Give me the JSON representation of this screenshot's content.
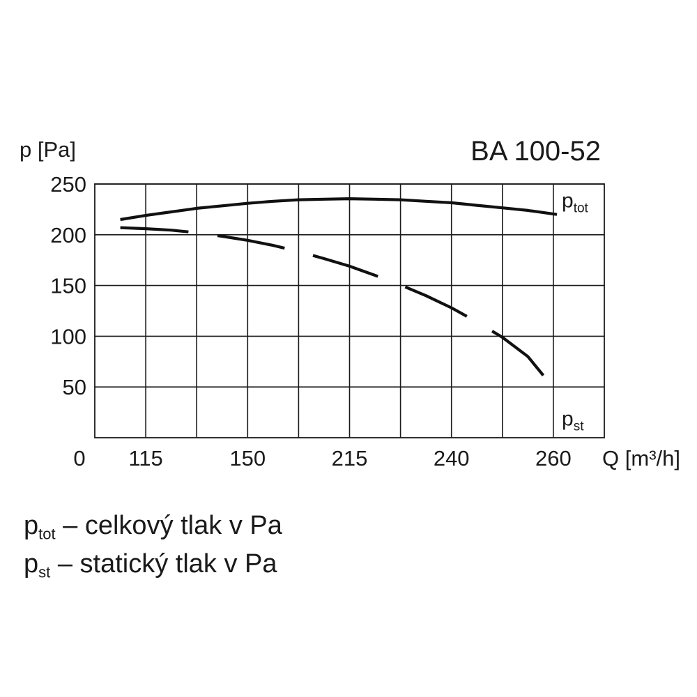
{
  "chart_data": {
    "type": "line",
    "title": "BA 100-52",
    "ylabel": "p [Pa]",
    "xlabel": "Q [m³/h]",
    "x_ticks": [
      "0",
      "115",
      "150",
      "215",
      "240",
      "260"
    ],
    "y_ticks": [
      250,
      200,
      150,
      100,
      50
    ],
    "ylim": [
      0,
      250
    ],
    "grid": true,
    "series": [
      {
        "name_base": "p",
        "name_sub": "tot",
        "style": "solid",
        "x": [
          0.5,
          1,
          1.5,
          2,
          2.5,
          3,
          3.5,
          4,
          4.5,
          5,
          5.5,
          6,
          6.5,
          7,
          7.5,
          8,
          8.5,
          9.07
        ],
        "y": [
          215,
          219,
          222.5,
          226,
          228.5,
          231,
          233,
          234.5,
          235,
          235.5,
          235,
          234.5,
          233,
          231.5,
          229,
          226.5,
          224,
          220
        ]
      },
      {
        "name_base": "p",
        "name_sub": "st",
        "style": "dashed",
        "x": [
          0.5,
          1,
          1.5,
          2,
          2.5,
          3,
          3.5,
          4,
          4.5,
          5,
          5.5,
          6,
          6.5,
          7,
          7.5,
          8,
          8.5,
          9.07
        ],
        "y": [
          207,
          206,
          204.5,
          202,
          198.5,
          194.5,
          189.5,
          183.5,
          176.5,
          169,
          160,
          150.5,
          140,
          128,
          114,
          99,
          80,
          45
        ]
      }
    ]
  },
  "legend": {
    "tot": {
      "base": "p",
      "sub": "tot",
      "text": " – celkový tlak v Pa"
    },
    "st": {
      "base": "p",
      "sub": "st",
      "text": " – statický  tlak v Pa"
    }
  }
}
